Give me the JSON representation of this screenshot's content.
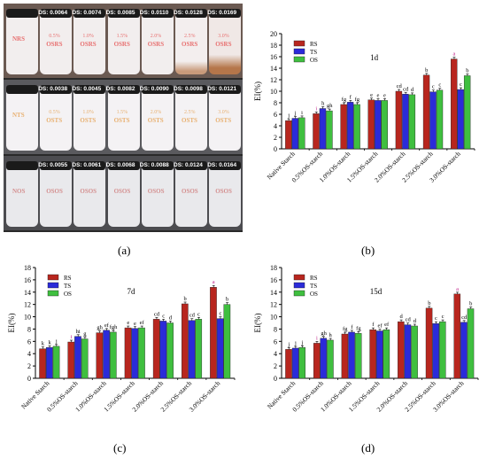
{
  "panel_a": {
    "letter": "(a)",
    "rows": [
      {
        "names": [
          "NRS",
          "OSRS",
          "OSRS",
          "OSRS",
          "OSRS",
          "OSRS",
          "OSRS"
        ],
        "pcts": [
          "",
          "0.5%",
          "1.0%",
          "1.5%",
          "2.0%",
          "2.5%",
          "3.0%"
        ],
        "ds": [
          "",
          "DS: 0.0064",
          "DS: 0.0074",
          "DS: 0.0085",
          "DS: 0.0110",
          "DS: 0.0128",
          "DS: 0.0169"
        ]
      },
      {
        "names": [
          "NTS",
          "OSTS",
          "OSTS",
          "OSTS",
          "OSTS",
          "OSTS",
          "OSTS"
        ],
        "pcts": [
          "",
          "0.5%",
          "1.0%",
          "1.5%",
          "2.0%",
          "2.5%",
          "3.0%"
        ],
        "ds": [
          "",
          "DS: 0.0038",
          "DS: 0.0045",
          "DS: 0.0082",
          "DS: 0.0090",
          "DS: 0.0098",
          "DS: 0.0121"
        ]
      },
      {
        "names": [
          "NOS",
          "OSOS",
          "OSOS",
          "OSOS",
          "OSOS",
          "OSOS",
          "OSOS"
        ],
        "pcts": [
          "",
          "",
          "",
          "",
          "",
          "",
          ""
        ],
        "ds": [
          "",
          "DS: 0.0055",
          "DS: 0.0061",
          "DS: 0.0068",
          "DS: 0.0088",
          "DS: 0.0124",
          "DS: 0.0164"
        ]
      }
    ]
  },
  "chart_data": [
    {
      "type": "bar",
      "letter": "(b)",
      "title": "1d",
      "ylabel": "EI(%)",
      "ylim": [
        0,
        20
      ],
      "yticks": [
        0,
        2,
        4,
        6,
        8,
        10,
        12,
        14,
        16,
        18,
        20
      ],
      "categories": [
        "Native Starch",
        "0.5%OS-starch",
        "1.0%OS-starch",
        "1.5%OS-starch",
        "2.0%OS-starch",
        "2.5%OS-starch",
        "3.0%OS-starch"
      ],
      "legend": [
        "RS",
        "TS",
        "OS"
      ],
      "series": [
        {
          "name": "RS",
          "values": [
            4.9,
            6.1,
            7.7,
            8.5,
            10.0,
            12.8,
            15.6
          ]
        },
        {
          "name": "TS",
          "values": [
            5.3,
            7.0,
            8.1,
            8.4,
            9.5,
            9.9,
            10.3
          ]
        },
        {
          "name": "OS",
          "values": [
            5.4,
            6.6,
            7.7,
            8.4,
            9.4,
            10.2,
            12.7
          ]
        }
      ],
      "letters": [
        [
          "j",
          "i",
          "fg",
          "e",
          "cd",
          "b",
          "a"
        ],
        [
          "j",
          "h",
          "f",
          "e",
          "cd",
          "c",
          "c"
        ],
        [
          "i",
          "gh",
          "fg",
          "e",
          "d",
          "c",
          "b"
        ]
      ]
    },
    {
      "type": "bar",
      "letter": "(c)",
      "title": "7d",
      "ylabel": "EI(%)",
      "ylim": [
        0,
        18
      ],
      "yticks": [
        0,
        2,
        4,
        6,
        8,
        10,
        12,
        14,
        16,
        18
      ],
      "categories": [
        "Native Starch",
        "0.5%OS-starch",
        "1.0%OS-starch",
        "1.5%OS-starch",
        "2.0%OS-starch",
        "2.5%OS-starch",
        "3.0%OS-starch"
      ],
      "legend": [
        "RS",
        "TS",
        "OS"
      ],
      "series": [
        {
          "name": "RS",
          "values": [
            4.8,
            5.9,
            7.4,
            8.2,
            9.6,
            12.1,
            14.8
          ]
        },
        {
          "name": "TS",
          "values": [
            5.0,
            6.8,
            7.8,
            8.1,
            9.3,
            9.4,
            9.7
          ]
        },
        {
          "name": "OS",
          "values": [
            5.2,
            6.4,
            7.5,
            8.2,
            9.0,
            9.6,
            12.0
          ]
        }
      ],
      "letters": [
        [
          "k",
          "i",
          "gh",
          "e",
          "cd",
          "b",
          "a"
        ],
        [
          "k",
          "hi",
          "ef",
          "e",
          "c",
          "cd",
          "c"
        ],
        [
          "j",
          "g",
          "fgh",
          "ef",
          "d",
          "c",
          "b"
        ]
      ]
    },
    {
      "type": "bar",
      "letter": "(d)",
      "title": "15d",
      "ylabel": "EI(%)",
      "ylim": [
        0,
        18
      ],
      "yticks": [
        0,
        2,
        4,
        6,
        8,
        10,
        12,
        14,
        16,
        18
      ],
      "categories": [
        "Native Starch",
        "0.5%OS-starch",
        "1.0%OS-starch",
        "1.5%OS-starch",
        "2.0%OS-starch",
        "2.5%OS-starch",
        "3.0%OS-starch"
      ],
      "legend": [
        "RS",
        "TS",
        "OS"
      ],
      "series": [
        {
          "name": "RS",
          "values": [
            4.7,
            5.7,
            7.2,
            7.9,
            9.2,
            11.4,
            13.7
          ]
        },
        {
          "name": "TS",
          "values": [
            4.9,
            6.5,
            7.5,
            7.7,
            8.7,
            8.9,
            9.1
          ]
        },
        {
          "name": "OS",
          "values": [
            5.0,
            6.2,
            7.3,
            7.9,
            8.5,
            9.2,
            11.3
          ]
        }
      ],
      "letters": [
        [
          "j",
          "i",
          "fg",
          "f",
          "d",
          "b",
          "a"
        ],
        [
          "j",
          "gh",
          "f",
          "ef",
          "cd",
          "c",
          "cd"
        ],
        [
          "j",
          "h",
          "fg",
          "ef",
          "d",
          "c",
          "b"
        ]
      ]
    }
  ],
  "colors": {
    "RS": "#b8261e",
    "TS": "#2b2bd9",
    "OS": "#3fbf3f",
    "bg": "#ffffff"
  }
}
